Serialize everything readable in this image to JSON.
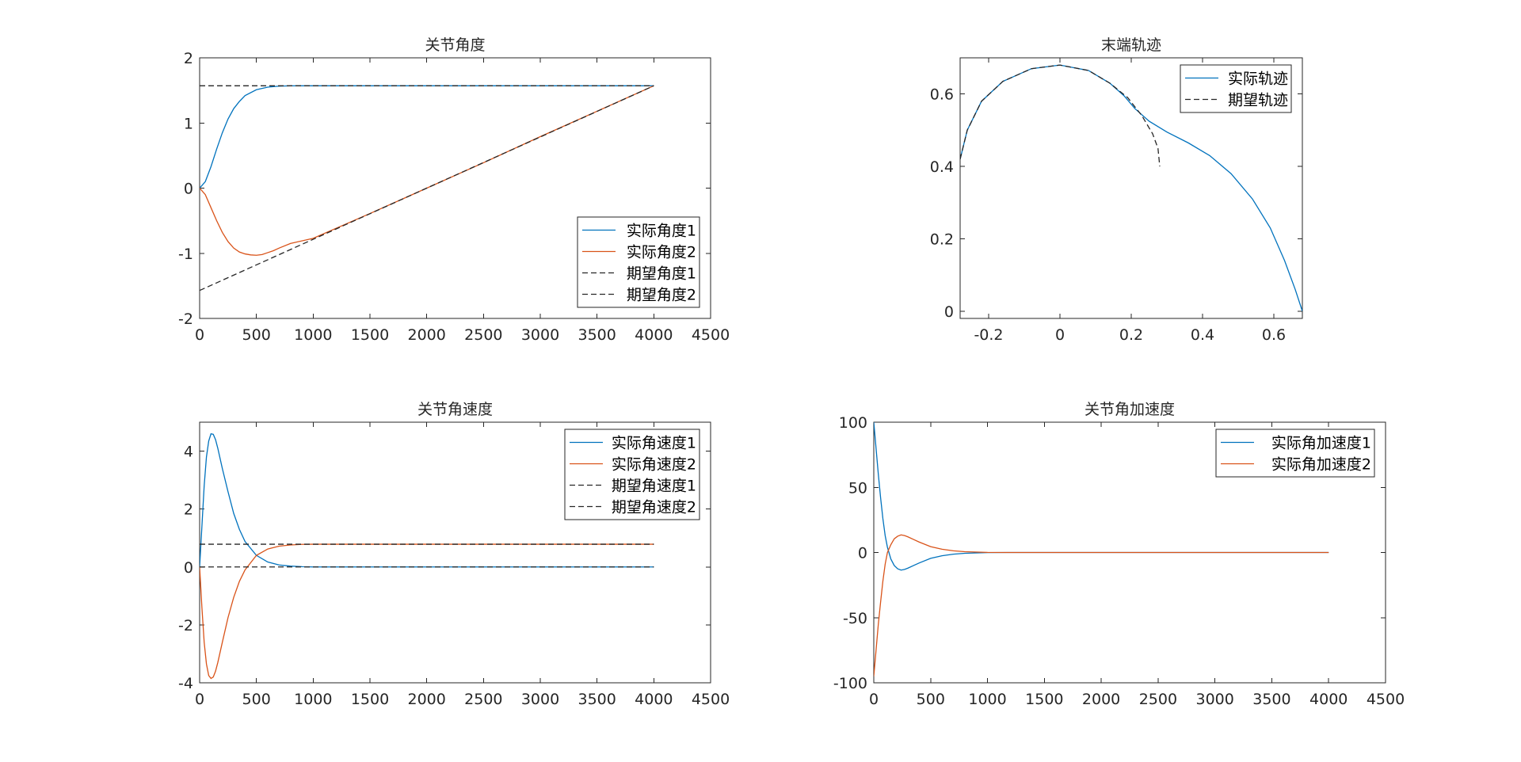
{
  "chart_data": [
    {
      "type": "line",
      "title": "关节角度",
      "xlim": [
        0,
        4500
      ],
      "ylim": [
        -2,
        2
      ],
      "xticks": [
        0,
        500,
        1000,
        1500,
        2000,
        2500,
        3000,
        3500,
        4000,
        4500
      ],
      "yticks": [
        -2,
        -1,
        0,
        1,
        2
      ],
      "legend_position": "bottom-right",
      "series": [
        {
          "name": "实际角度1",
          "color": "#0072BD",
          "dash": "solid",
          "x": [
            0,
            50,
            100,
            150,
            200,
            250,
            300,
            350,
            400,
            500,
            600,
            700,
            800,
            1000,
            4000
          ],
          "y": [
            0,
            0.1,
            0.33,
            0.6,
            0.85,
            1.06,
            1.22,
            1.33,
            1.42,
            1.51,
            1.55,
            1.565,
            1.57,
            1.5708,
            1.5708
          ]
        },
        {
          "name": "实际角度2",
          "color": "#D95319",
          "dash": "solid",
          "x": [
            0,
            50,
            100,
            150,
            200,
            250,
            300,
            350,
            400,
            450,
            500,
            550,
            600,
            650,
            700,
            800,
            1000,
            1500,
            2000,
            2500,
            3000,
            3500,
            4000
          ],
          "y": [
            0,
            -0.1,
            -0.3,
            -0.5,
            -0.68,
            -0.82,
            -0.92,
            -0.98,
            -1.01,
            -1.025,
            -1.03,
            -1.02,
            -0.99,
            -0.96,
            -0.92,
            -0.85,
            -0.77,
            -0.39,
            0,
            0.39,
            0.79,
            1.18,
            1.5708
          ]
        },
        {
          "name": "期望角度1",
          "color": "#262626",
          "dash": "dashed",
          "x": [
            0,
            4000
          ],
          "y": [
            1.5708,
            1.5708
          ]
        },
        {
          "name": "期望角度2",
          "color": "#262626",
          "dash": "dashed",
          "x": [
            0,
            4000
          ],
          "y": [
            -1.5708,
            1.5708
          ]
        }
      ]
    },
    {
      "type": "line",
      "title": "末端轨迹",
      "xlim": [
        -0.28,
        0.68
      ],
      "ylim": [
        -0.02,
        0.7
      ],
      "xticks": [
        -0.2,
        0,
        0.2,
        0.4,
        0.6
      ],
      "yticks": [
        0,
        0.2,
        0.4,
        0.6
      ],
      "legend_position": "top-right",
      "series": [
        {
          "name": "实际轨迹",
          "color": "#0072BD",
          "dash": "solid",
          "x": [
            -0.28,
            -0.26,
            -0.22,
            -0.16,
            -0.08,
            0,
            0.08,
            0.14,
            0.18,
            0.21,
            0.25,
            0.3,
            0.36,
            0.42,
            0.48,
            0.54,
            0.59,
            0.63,
            0.66,
            0.68
          ],
          "y": [
            0.42,
            0.5,
            0.58,
            0.635,
            0.67,
            0.68,
            0.665,
            0.63,
            0.595,
            0.56,
            0.525,
            0.495,
            0.465,
            0.43,
            0.38,
            0.31,
            0.23,
            0.14,
            0.06,
            0
          ]
        },
        {
          "name": "期望轨迹",
          "color": "#262626",
          "dash": "dashed",
          "x": [
            -0.28,
            -0.26,
            -0.22,
            -0.16,
            -0.08,
            0,
            0.08,
            0.14,
            0.19,
            0.23,
            0.26,
            0.275,
            0.28
          ],
          "y": [
            0.42,
            0.5,
            0.58,
            0.635,
            0.67,
            0.68,
            0.665,
            0.63,
            0.59,
            0.54,
            0.49,
            0.45,
            0.4
          ]
        }
      ]
    },
    {
      "type": "line",
      "title": "关节角速度",
      "xlim": [
        0,
        4500
      ],
      "ylim": [
        -4,
        5
      ],
      "xticks": [
        0,
        500,
        1000,
        1500,
        2000,
        2500,
        3000,
        3500,
        4000,
        4500
      ],
      "yticks": [
        -4,
        -2,
        0,
        2,
        4
      ],
      "legend_position": "top-right",
      "series": [
        {
          "name": "实际角速度1",
          "color": "#0072BD",
          "dash": "solid",
          "x": [
            0,
            20,
            40,
            60,
            80,
            100,
            120,
            140,
            160,
            200,
            250,
            300,
            350,
            400,
            500,
            600,
            700,
            800,
            900,
            1000,
            1200,
            1500,
            4000
          ],
          "y": [
            0,
            1.4,
            2.8,
            3.8,
            4.35,
            4.6,
            4.58,
            4.4,
            4.1,
            3.4,
            2.6,
            1.85,
            1.3,
            0.88,
            0.4,
            0.17,
            0.07,
            0.03,
            0.01,
            0,
            0,
            0,
            0
          ]
        },
        {
          "name": "实际角速度2",
          "color": "#D95319",
          "dash": "solid",
          "x": [
            0,
            20,
            40,
            60,
            80,
            100,
            120,
            140,
            160,
            200,
            250,
            300,
            350,
            400,
            500,
            600,
            700,
            800,
            900,
            1000,
            1100,
            4000
          ],
          "y": [
            0,
            -1.4,
            -2.6,
            -3.35,
            -3.75,
            -3.85,
            -3.8,
            -3.6,
            -3.3,
            -2.6,
            -1.75,
            -1.05,
            -0.5,
            -0.1,
            0.4,
            0.62,
            0.72,
            0.76,
            0.78,
            0.785,
            0.785,
            0.785
          ]
        },
        {
          "name": "期望角速度1",
          "color": "#262626",
          "dash": "dashed",
          "x": [
            0,
            4000
          ],
          "y": [
            0.785,
            0.785
          ]
        },
        {
          "name": "期望角速度2",
          "color": "#262626",
          "dash": "dashed",
          "x": [
            0,
            4000
          ],
          "y": [
            0,
            0
          ]
        }
      ]
    },
    {
      "type": "line",
      "title": "关节角加速度",
      "xlim": [
        0,
        4500
      ],
      "ylim": [
        -100,
        100
      ],
      "xticks": [
        0,
        500,
        1000,
        1500,
        2000,
        2500,
        3000,
        3500,
        4000,
        4500
      ],
      "yticks": [
        -100,
        -50,
        0,
        50,
        100
      ],
      "legend_position": "top-right",
      "series": [
        {
          "name": "实际角加速度1",
          "color": "#0072BD",
          "dash": "solid",
          "x": [
            0,
            20,
            40,
            60,
            80,
            100,
            120,
            150,
            180,
            210,
            240,
            270,
            300,
            350,
            400,
            500,
            600,
            700,
            800,
            1000,
            1200,
            1500,
            4000
          ],
          "y": [
            100,
            80,
            60,
            42,
            26,
            13,
            4,
            -5,
            -10,
            -12.5,
            -13.5,
            -13,
            -12,
            -10,
            -8,
            -4.5,
            -2.5,
            -1.3,
            -0.6,
            -0.1,
            0,
            0,
            0
          ]
        },
        {
          "name": "实际角加速度2",
          "color": "#D95319",
          "dash": "solid",
          "x": [
            0,
            20,
            40,
            60,
            80,
            100,
            120,
            150,
            180,
            210,
            240,
            270,
            300,
            350,
            400,
            500,
            600,
            700,
            800,
            1000,
            1200,
            1500,
            4000
          ],
          "y": [
            -95,
            -75,
            -55,
            -38,
            -22,
            -9,
            0,
            6,
            10.5,
            12.5,
            13.5,
            13,
            12,
            10,
            8,
            4.5,
            2.5,
            1.3,
            0.6,
            0.1,
            0,
            0,
            0
          ]
        }
      ]
    }
  ]
}
